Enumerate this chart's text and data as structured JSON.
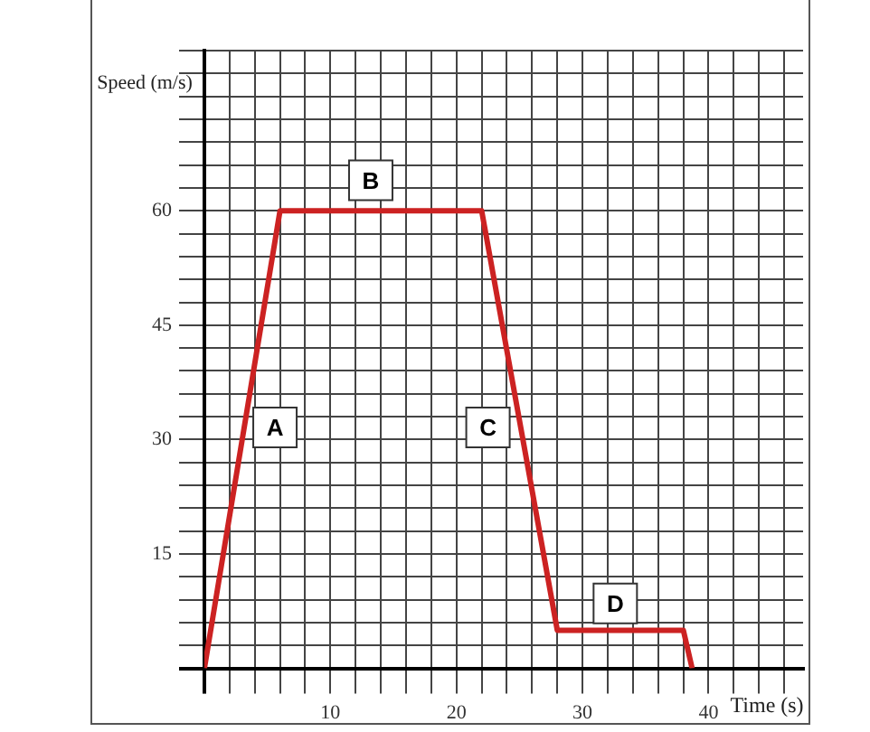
{
  "chart_data": {
    "type": "line",
    "xlabel": "Time (s)",
    "ylabel": "Speed (m/s)",
    "x": [
      0,
      6,
      22,
      28,
      38,
      38.7
    ],
    "series": [
      {
        "color": "#cc2222",
        "values": [
          0,
          60,
          60,
          5,
          5,
          0
        ]
      }
    ],
    "xlim": [
      0,
      47.5
    ],
    "xticks": [
      {
        "value": 0,
        "label": null
      },
      {
        "value": 2,
        "label": null
      },
      {
        "value": 4,
        "label": null
      },
      {
        "value": 6,
        "label": null
      },
      {
        "value": 8,
        "label": null
      },
      10,
      {
        "value": 12,
        "label": null
      },
      {
        "value": 14,
        "label": null
      },
      {
        "value": 16,
        "label": null
      },
      {
        "value": 18,
        "label": null
      },
      20,
      {
        "value": 22,
        "label": null
      },
      {
        "value": 24,
        "label": null
      },
      {
        "value": 26,
        "label": null
      },
      {
        "value": 28,
        "label": null
      },
      30,
      {
        "value": 32,
        "label": null
      },
      {
        "value": 34,
        "label": null
      },
      {
        "value": 36,
        "label": null
      },
      {
        "value": 38,
        "label": null
      },
      40,
      {
        "value": 42,
        "label": null
      },
      {
        "value": 44,
        "label": null
      },
      {
        "value": 46,
        "label": null
      }
    ],
    "ylim": [
      0,
      81
    ],
    "yticks": [
      {
        "value": 0,
        "label": null
      },
      {
        "value": 3,
        "label": null
      },
      {
        "value": 6,
        "label": null
      },
      {
        "value": 9,
        "label": null
      },
      {
        "value": 12,
        "label": null
      },
      15,
      {
        "value": 18,
        "label": null
      },
      {
        "value": 21,
        "label": null
      },
      {
        "value": 24,
        "label": null
      },
      {
        "value": 27,
        "label": null
      },
      30,
      {
        "value": 33,
        "label": null
      },
      {
        "value": 36,
        "label": null
      },
      {
        "value": 39,
        "label": null
      },
      {
        "value": 42,
        "label": null
      },
      45,
      {
        "value": 48,
        "label": null
      },
      {
        "value": 51,
        "label": null
      },
      {
        "value": 54,
        "label": null
      },
      {
        "value": 57,
        "label": null
      },
      60,
      {
        "value": 63,
        "label": null
      },
      {
        "value": 66,
        "label": null
      },
      {
        "value": 69,
        "label": null
      },
      {
        "value": 72,
        "label": null
      },
      {
        "value": 75,
        "label": null
      },
      {
        "value": 78,
        "label": null
      },
      {
        "value": 81,
        "label": null
      }
    ],
    "annotations": [
      {
        "text": "A",
        "x": 5.6,
        "y": 31.6
      },
      {
        "text": "B",
        "x": 13.2,
        "y": 64
      },
      {
        "text": "C",
        "x": 22.5,
        "y": 31.6
      },
      {
        "text": "D",
        "x": 32.6,
        "y": 8.5
      }
    ],
    "grid": true,
    "legend": false,
    "marker": "none",
    "line_style": "solid"
  }
}
